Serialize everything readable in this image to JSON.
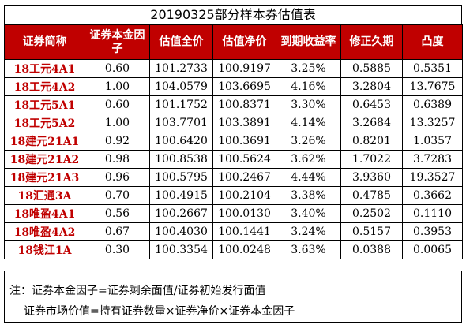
{
  "title": "20190325部分样本券估值表",
  "columns": [
    "证券简称",
    "证券本金因子",
    "估值全价",
    "估值净价",
    "到期收益率",
    "修正久期",
    "凸度"
  ],
  "rows": [
    [
      "18工元4A1",
      "0.60",
      "101.2733",
      "100.9197",
      "3.25%",
      "0.5885",
      "0.5351"
    ],
    [
      "18工元4A2",
      "1.00",
      "104.0579",
      "103.6695",
      "4.16%",
      "3.2804",
      "13.7675"
    ],
    [
      "18工元5A1",
      "0.60",
      "101.1752",
      "100.8371",
      "3.30%",
      "0.6453",
      "0.6389"
    ],
    [
      "18工元5A2",
      "1.00",
      "103.7701",
      "103.3891",
      "4.14%",
      "3.2684",
      "13.3257"
    ],
    [
      "18建元21A1",
      "0.92",
      "100.6420",
      "100.3691",
      "3.26%",
      "0.8201",
      "1.0357"
    ],
    [
      "18建元21A2",
      "0.98",
      "100.8538",
      "100.5624",
      "3.62%",
      "1.7022",
      "3.7283"
    ],
    [
      "18建元21A3",
      "0.96",
      "100.5795",
      "100.2467",
      "4.44%",
      "3.9360",
      "19.3527"
    ],
    [
      "18汇通3A",
      "0.70",
      "100.4915",
      "100.2104",
      "3.38%",
      "0.4785",
      "0.3662"
    ],
    [
      "18唯盈4A1",
      "0.56",
      "100.2667",
      "100.0130",
      "3.40%",
      "0.2502",
      "0.1110"
    ],
    [
      "18唯盈4A2",
      "0.67",
      "100.4030",
      "100.1441",
      "3.24%",
      "0.5157",
      "0.3953"
    ],
    [
      "18钱江1A",
      "0.30",
      "100.3354",
      "100.0248",
      "3.63%",
      "0.0388",
      "0.0065"
    ]
  ],
  "notes": {
    "line1": "注：证券本金因子=证券剩余面值/证券初始发行面值",
    "line2": "证券市场价值=持有证券数量×证券净价×证券本金因子"
  },
  "colors": {
    "header_bg": "#c00000",
    "header_text": "#ffffff",
    "name_text": "#c00000"
  }
}
